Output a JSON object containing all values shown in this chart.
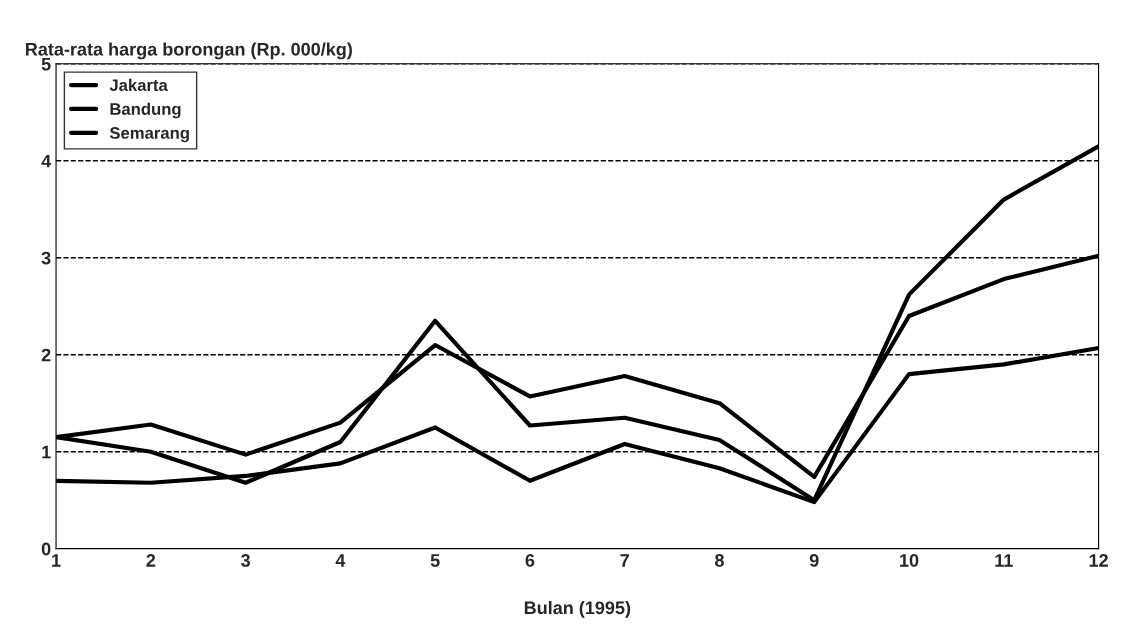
{
  "chart_data": {
    "type": "line",
    "ylabel": "Rata-rata harga borongan (Rp. 000/kg)",
    "xlabel": "Bulan (1995)",
    "x": [
      1,
      2,
      3,
      4,
      5,
      6,
      7,
      8,
      9,
      10,
      11,
      12
    ],
    "series": [
      {
        "name": "Jakarta",
        "color": "#000000",
        "values": [
          1.15,
          1.28,
          0.97,
          1.3,
          2.1,
          1.57,
          1.78,
          1.5,
          0.74,
          2.4,
          2.78,
          3.02
        ]
      },
      {
        "name": "Bandung",
        "color": "#000000",
        "values": [
          1.15,
          1.0,
          0.68,
          1.1,
          2.35,
          1.27,
          1.35,
          1.12,
          0.5,
          2.62,
          3.6,
          4.15
        ]
      },
      {
        "name": "Semarang",
        "color": "#000000",
        "values": [
          0.7,
          0.68,
          0.75,
          0.88,
          1.25,
          0.7,
          1.08,
          0.83,
          0.48,
          1.8,
          1.9,
          2.07
        ]
      }
    ],
    "xlim": [
      1,
      12
    ],
    "ylim": [
      0,
      5
    ],
    "xticks": [
      1,
      2,
      3,
      4,
      5,
      6,
      7,
      8,
      9,
      10,
      11,
      12
    ],
    "yticks": [
      0,
      1,
      2,
      3,
      4,
      5
    ],
    "grid": "y",
    "legend": "top left",
    "marker": "none",
    "line_style": "solid"
  }
}
